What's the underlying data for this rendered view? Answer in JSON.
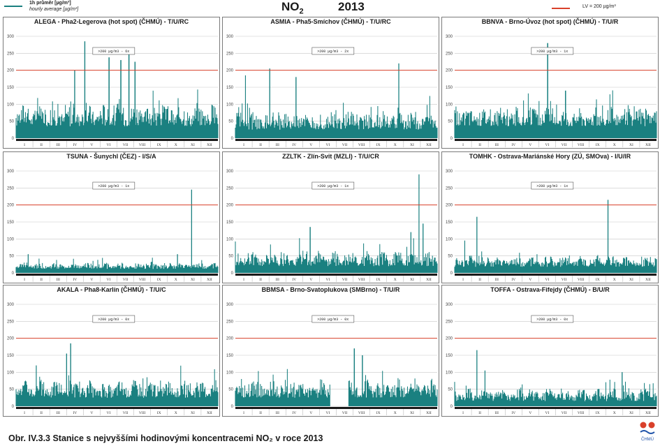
{
  "legend": {
    "hourly_cs": "1h průměr [µg/m³]",
    "hourly_en": "hourly average [µg/m³]",
    "limit": "LV = 200 µg/m³"
  },
  "header": {
    "pollutant": "NO",
    "subscript": "2",
    "year": "2013"
  },
  "caption": "Obr. IV.3.3  Stanice s nejvyššími hodinovými koncentracemi NO₂ v roce 2013",
  "logo_text": "ČHMÚ",
  "colors": {
    "series": "#1a8080",
    "limit_line": "#d9402a",
    "grid": "#c8c8c8",
    "axis_bar": "#1a1a1a"
  },
  "chart_data": [
    {
      "type": "line",
      "title": "ALEGA - Pha2-Legerova (hot spot) (ČHMÚ) - T/U/RC",
      "exceed_label": ">200 µg/m3 - 6x",
      "yticks": [
        "0",
        "50",
        "100",
        "150",
        "200",
        "250",
        "300"
      ],
      "xticks": [
        "I",
        "II",
        "III",
        "IV",
        "V",
        "VI",
        "VII",
        "VIII",
        "IX",
        "X",
        "XI",
        "XII"
      ],
      "ylim": [
        0,
        300
      ],
      "limit": 200,
      "base": 35,
      "spread": 55,
      "peaks": [
        [
          0.34,
          285
        ],
        [
          0.46,
          238
        ],
        [
          0.52,
          230
        ],
        [
          0.56,
          255
        ],
        [
          0.59,
          225
        ],
        [
          0.29,
          200
        ]
      ],
      "gap": null
    },
    {
      "type": "line",
      "title": "ASMIA - Pha5-Smíchov (ČHMÚ) - T/U/RC",
      "exceed_label": ">200 µg/m3 - 2x",
      "yticks": [
        "0",
        "50",
        "100",
        "150",
        "200",
        "250",
        "300"
      ],
      "xticks": [
        "I",
        "II",
        "III",
        "IV",
        "V",
        "VI",
        "VII",
        "VIII",
        "IX",
        "X",
        "XI",
        "XII"
      ],
      "ylim": [
        0,
        300
      ],
      "limit": 200,
      "base": 25,
      "spread": 45,
      "peaks": [
        [
          0.17,
          205
        ],
        [
          0.81,
          220
        ],
        [
          0.05,
          185
        ],
        [
          0.3,
          180
        ]
      ],
      "gap": null
    },
    {
      "type": "line",
      "title": "BBNVA - Brno-Úvoz (hot spot) (ČHMÚ) - T/U/R",
      "exceed_label": ">200 µg/m3 - 1x",
      "yticks": [
        "0",
        "50",
        "100",
        "150",
        "200",
        "250",
        "300"
      ],
      "xticks": [
        "I",
        "II",
        "III",
        "IV",
        "V",
        "VI",
        "VII",
        "VIII",
        "IX",
        "X",
        "XI",
        "XII"
      ],
      "ylim": [
        0,
        300
      ],
      "limit": 200,
      "base": 35,
      "spread": 45,
      "peaks": [
        [
          0.46,
          280
        ],
        [
          0.55,
          140
        ]
      ],
      "gap": null
    },
    {
      "type": "line",
      "title": "TSUNA - Šunychl (ČEZ) - I/S/A",
      "exceed_label": ">200 µg/m3 - 1x",
      "yticks": [
        "0",
        "50",
        "100",
        "150",
        "200",
        "250",
        "300"
      ],
      "xticks": [
        "I",
        "II",
        "III",
        "IV",
        "V",
        "VI",
        "VII",
        "VIII",
        "IX",
        "X",
        "XI",
        "XII"
      ],
      "ylim": [
        0,
        300
      ],
      "limit": 200,
      "base": 12,
      "spread": 15,
      "peaks": [
        [
          0.87,
          245
        ],
        [
          0.8,
          55
        ],
        [
          0.06,
          55
        ]
      ],
      "gap": null
    },
    {
      "type": "line",
      "title": "ZZLTK - Zlín-Svit (MZLI) - T/U/CR",
      "exceed_label": ">200 µg/m3 - 1x",
      "yticks": [
        "0",
        "50",
        "100",
        "150",
        "200",
        "250",
        "300"
      ],
      "xticks": [
        "I",
        "II",
        "III",
        "IV",
        "V",
        "VI",
        "VII",
        "VIII",
        "IX",
        "X",
        "XI",
        "XII"
      ],
      "ylim": [
        0,
        300
      ],
      "limit": 200,
      "base": 20,
      "spread": 35,
      "peaks": [
        [
          0.91,
          290
        ],
        [
          0.93,
          145
        ],
        [
          0.37,
          135
        ],
        [
          0.87,
          120
        ]
      ],
      "gap": null
    },
    {
      "type": "line",
      "title": "TOMHK - Ostrava-Mariánské Hory (ZÚ, SMOva) - I/U/IR",
      "exceed_label": ">200 µg/m3 - 1x",
      "yticks": [
        "0",
        "50",
        "100",
        "150",
        "200",
        "250",
        "300"
      ],
      "xticks": [
        "I",
        "II",
        "III",
        "IV",
        "V",
        "VI",
        "VII",
        "VIII",
        "IX",
        "X",
        "XI",
        "XII"
      ],
      "ylim": [
        0,
        300
      ],
      "limit": 200,
      "base": 18,
      "spread": 25,
      "peaks": [
        [
          0.76,
          215
        ],
        [
          0.11,
          165
        ],
        [
          0.05,
          95
        ]
      ],
      "gap": null
    },
    {
      "type": "line",
      "title": "AKALA - Pha8-Karlín (ČHMÚ) - T/U/C",
      "exceed_label": ">200 µg/m3 - 0x",
      "yticks": [
        "0",
        "50",
        "100",
        "150",
        "200",
        "250",
        "300"
      ],
      "xticks": [
        "I",
        "II",
        "III",
        "IV",
        "V",
        "VI",
        "VII",
        "VIII",
        "IX",
        "X",
        "XI",
        "XII"
      ],
      "ylim": [
        0,
        300
      ],
      "limit": 200,
      "base": 25,
      "spread": 40,
      "peaks": [
        [
          0.27,
          185
        ],
        [
          0.25,
          155
        ],
        [
          0.1,
          120
        ]
      ],
      "gap": null
    },
    {
      "type": "line",
      "title": "BBMSA - Brno-Svatoplukova (SMBrno) - T/U/R",
      "exceed_label": ">200 µg/m3 - 0x",
      "yticks": [
        "0",
        "50",
        "100",
        "150",
        "200",
        "250",
        "300"
      ],
      "xticks": [
        "I",
        "II",
        "III",
        "IV",
        "V",
        "VI",
        "VII",
        "VIII",
        "IX",
        "X",
        "XI",
        "XII"
      ],
      "ylim": [
        0,
        300
      ],
      "limit": 200,
      "base": 25,
      "spread": 45,
      "peaks": [
        [
          0.59,
          170
        ],
        [
          0.63,
          150
        ]
      ],
      "gap": [
        0.47,
        0.56
      ]
    },
    {
      "type": "line",
      "title": "TOFFA - Ostrava-Fifejdy (ČHMÚ) - B/U/R",
      "exceed_label": ">200 µg/m3 - 0x",
      "yticks": [
        "0",
        "50",
        "100",
        "150",
        "200",
        "250",
        "300"
      ],
      "xticks": [
        "I",
        "II",
        "III",
        "IV",
        "V",
        "VI",
        "VII",
        "VIII",
        "IX",
        "X",
        "XI",
        "XII"
      ],
      "ylim": [
        0,
        300
      ],
      "limit": 200,
      "base": 15,
      "spread": 30,
      "peaks": [
        [
          0.11,
          165
        ],
        [
          0.15,
          105
        ],
        [
          0.83,
          100
        ]
      ],
      "gap": null
    }
  ]
}
